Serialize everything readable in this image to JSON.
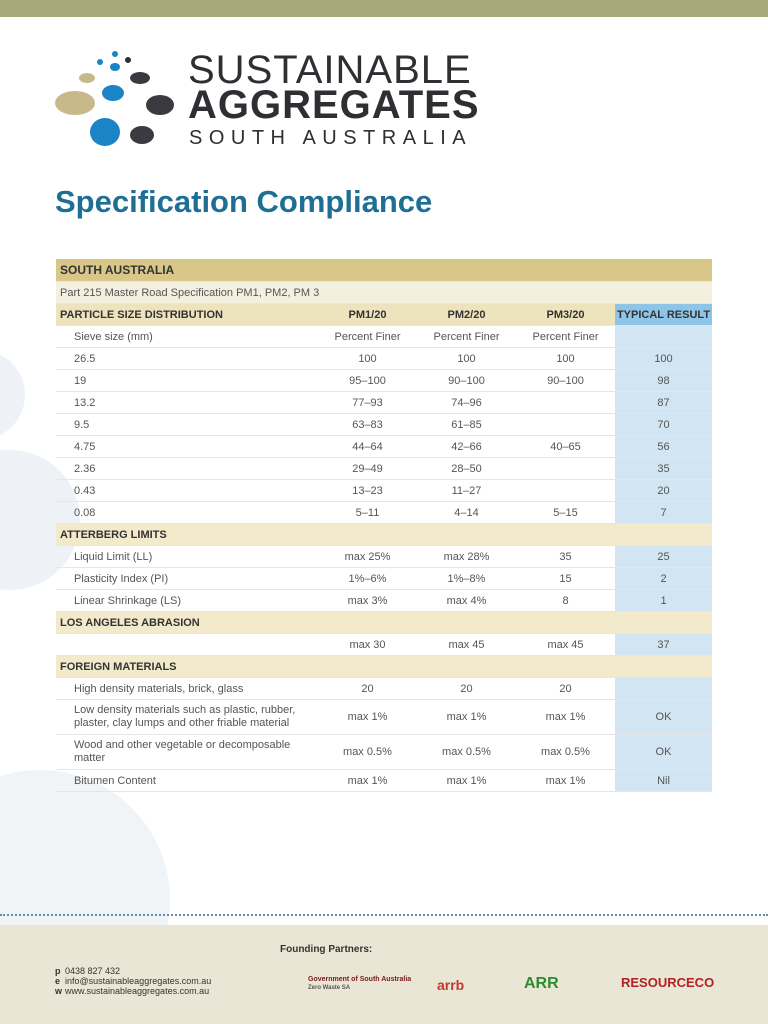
{
  "header": {
    "logo_line1": "SUSTAINABLE",
    "logo_line2": "AGGREGATES",
    "logo_line3": "SOUTH AUSTRALIA"
  },
  "title": "Specification Compliance",
  "table": {
    "region": "SOUTH AUSTRALIA",
    "spec": "Part 215 Master Road Specification PM1, PM2, PM 3",
    "columns": [
      "PARTICLE SIZE DISTRIBUTION",
      "PM1/20",
      "PM2/20",
      "PM3/20",
      "TYPICAL RESULT"
    ],
    "sections": [
      {
        "rows": [
          [
            "Sieve size (mm)",
            "Percent Finer",
            "Percent Finer",
            "Percent Finer",
            null
          ],
          [
            "26.5",
            "100",
            "100",
            "100",
            "100"
          ],
          [
            "19",
            "95–100",
            "90–100",
            "90–100",
            "98"
          ],
          [
            "13.2",
            "77–93",
            "74–96",
            null,
            "87"
          ],
          [
            "9.5",
            "63–83",
            "61–85",
            null,
            "70"
          ],
          [
            "4.75",
            "44–64",
            "42–66",
            "40–65",
            "56"
          ],
          [
            "2.36",
            "29–49",
            "28–50",
            null,
            "35"
          ],
          [
            "0.43",
            "13–23",
            "11–27",
            null,
            "20"
          ],
          [
            "0.08",
            "5–11",
            "4–14",
            "5–15",
            "7"
          ]
        ]
      },
      {
        "heading": "ATTERBERG LIMITS",
        "rows": [
          [
            "Liquid Limit (LL)",
            "max 25%",
            "max 28%",
            "35",
            "25"
          ],
          [
            "Plasticity Index (PI)",
            "1%–6%",
            "1%–8%",
            "15",
            "2"
          ],
          [
            "Linear Shrinkage (LS)",
            "max 3%",
            "max 4%",
            "8",
            "1"
          ]
        ]
      },
      {
        "heading": "LOS ANGELES ABRASION",
        "rows": [
          [
            null,
            "max 30",
            "max 45",
            "max 45",
            "37"
          ]
        ]
      },
      {
        "heading": "FOREIGN MATERIALS",
        "rows": [
          [
            "High density materials, brick, glass",
            "20",
            "20",
            "20",
            null
          ],
          [
            "Low density materials such as plastic, rubber, plaster, clay lumps and other friable material",
            "max 1%",
            "max 1%",
            "max 1%",
            "OK"
          ],
          [
            "Wood and other vegetable or decomposable matter",
            "max 0.5%",
            "max 0.5%",
            "max 0.5%",
            "OK"
          ],
          [
            "Bitumen Content",
            "max 1%",
            "max 1%",
            "max 1%",
            "Nil"
          ]
        ]
      }
    ]
  },
  "footer": {
    "partners_label": "Founding Partners:",
    "contacts": [
      {
        "key": "p",
        "text": "0438 827 432"
      },
      {
        "key": "e",
        "text": "info@sustainableaggregates.com.au"
      },
      {
        "key": "w",
        "text": "www.sustainableaggregates.com.au"
      }
    ],
    "partners": [
      "Government of South Australia",
      "Zero Waste SA",
      "arrb",
      "ARR",
      "RESOURCECO"
    ]
  }
}
